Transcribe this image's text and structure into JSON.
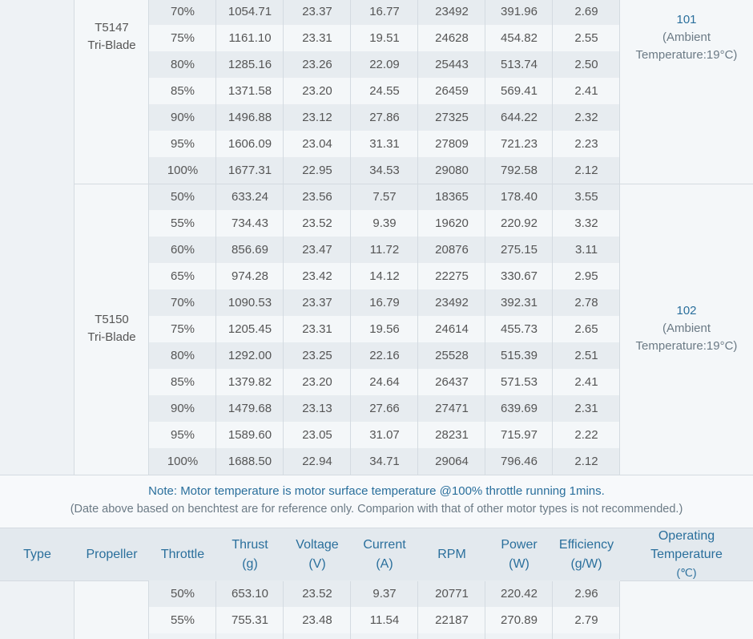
{
  "groups": [
    {
      "propeller": [
        "T5147",
        "Tri-Blade"
      ],
      "temperature": "101",
      "ambient": [
        "(Ambient",
        "Temperature:19°C)"
      ],
      "rows": [
        [
          "70%",
          "1054.71",
          "23.37",
          "16.77",
          "23492",
          "391.96",
          "2.69"
        ],
        [
          "75%",
          "1161.10",
          "23.31",
          "19.51",
          "24628",
          "454.82",
          "2.55"
        ],
        [
          "80%",
          "1285.16",
          "23.26",
          "22.09",
          "25443",
          "513.74",
          "2.50"
        ],
        [
          "85%",
          "1371.58",
          "23.20",
          "24.55",
          "26459",
          "569.41",
          "2.41"
        ],
        [
          "90%",
          "1496.88",
          "23.12",
          "27.86",
          "27325",
          "644.22",
          "2.32"
        ],
        [
          "95%",
          "1606.09",
          "23.04",
          "31.31",
          "27809",
          "721.23",
          "2.23"
        ],
        [
          "100%",
          "1677.31",
          "22.95",
          "34.53",
          "29080",
          "792.58",
          "2.12"
        ]
      ]
    },
    {
      "propeller": [
        "T5150",
        "Tri-Blade"
      ],
      "temperature": "102",
      "ambient": [
        "(Ambient",
        "Temperature:19°C)"
      ],
      "rows": [
        [
          "50%",
          "633.24",
          "23.56",
          "7.57",
          "18365",
          "178.40",
          "3.55"
        ],
        [
          "55%",
          "734.43",
          "23.52",
          "9.39",
          "19620",
          "220.92",
          "3.32"
        ],
        [
          "60%",
          "856.69",
          "23.47",
          "11.72",
          "20876",
          "275.15",
          "3.11"
        ],
        [
          "65%",
          "974.28",
          "23.42",
          "14.12",
          "22275",
          "330.67",
          "2.95"
        ],
        [
          "70%",
          "1090.53",
          "23.37",
          "16.79",
          "23492",
          "392.31",
          "2.78"
        ],
        [
          "75%",
          "1205.45",
          "23.31",
          "19.56",
          "24614",
          "455.73",
          "2.65"
        ],
        [
          "80%",
          "1292.00",
          "23.25",
          "22.16",
          "25528",
          "515.39",
          "2.51"
        ],
        [
          "85%",
          "1379.82",
          "23.20",
          "24.64",
          "26437",
          "571.53",
          "2.41"
        ],
        [
          "90%",
          "1479.68",
          "23.13",
          "27.66",
          "27471",
          "639.69",
          "2.31"
        ],
        [
          "95%",
          "1589.60",
          "23.05",
          "31.07",
          "28231",
          "715.97",
          "2.22"
        ],
        [
          "100%",
          "1688.50",
          "22.94",
          "34.71",
          "29064",
          "796.46",
          "2.12"
        ]
      ]
    }
  ],
  "note": {
    "line1": "Note: Motor temperature is motor surface temperature @100% throttle running 1mins.",
    "line2": "(Date above based on benchtest are for reference only. Comparion with that of other motor types is not recommended.)"
  },
  "header": {
    "type": "Type",
    "propeller": "Propeller",
    "throttle": "Throttle",
    "thrust": [
      "Thrust",
      "(g)"
    ],
    "voltage": [
      "Voltage",
      "(V)"
    ],
    "current": [
      "Current",
      "(A)"
    ],
    "rpm": "RPM",
    "power": [
      "Power",
      "(W)"
    ],
    "efficiency": [
      "Efficiency",
      "(g/W)"
    ],
    "operating_temp": [
      "Operating",
      "Temperature",
      "(℃)"
    ]
  },
  "next_group_rows": [
    [
      "50%",
      "653.10",
      "23.52",
      "9.37",
      "20771",
      "220.42",
      "2.96"
    ],
    [
      "55%",
      "755.31",
      "23.48",
      "11.54",
      "22187",
      "270.89",
      "2.79"
    ]
  ]
}
